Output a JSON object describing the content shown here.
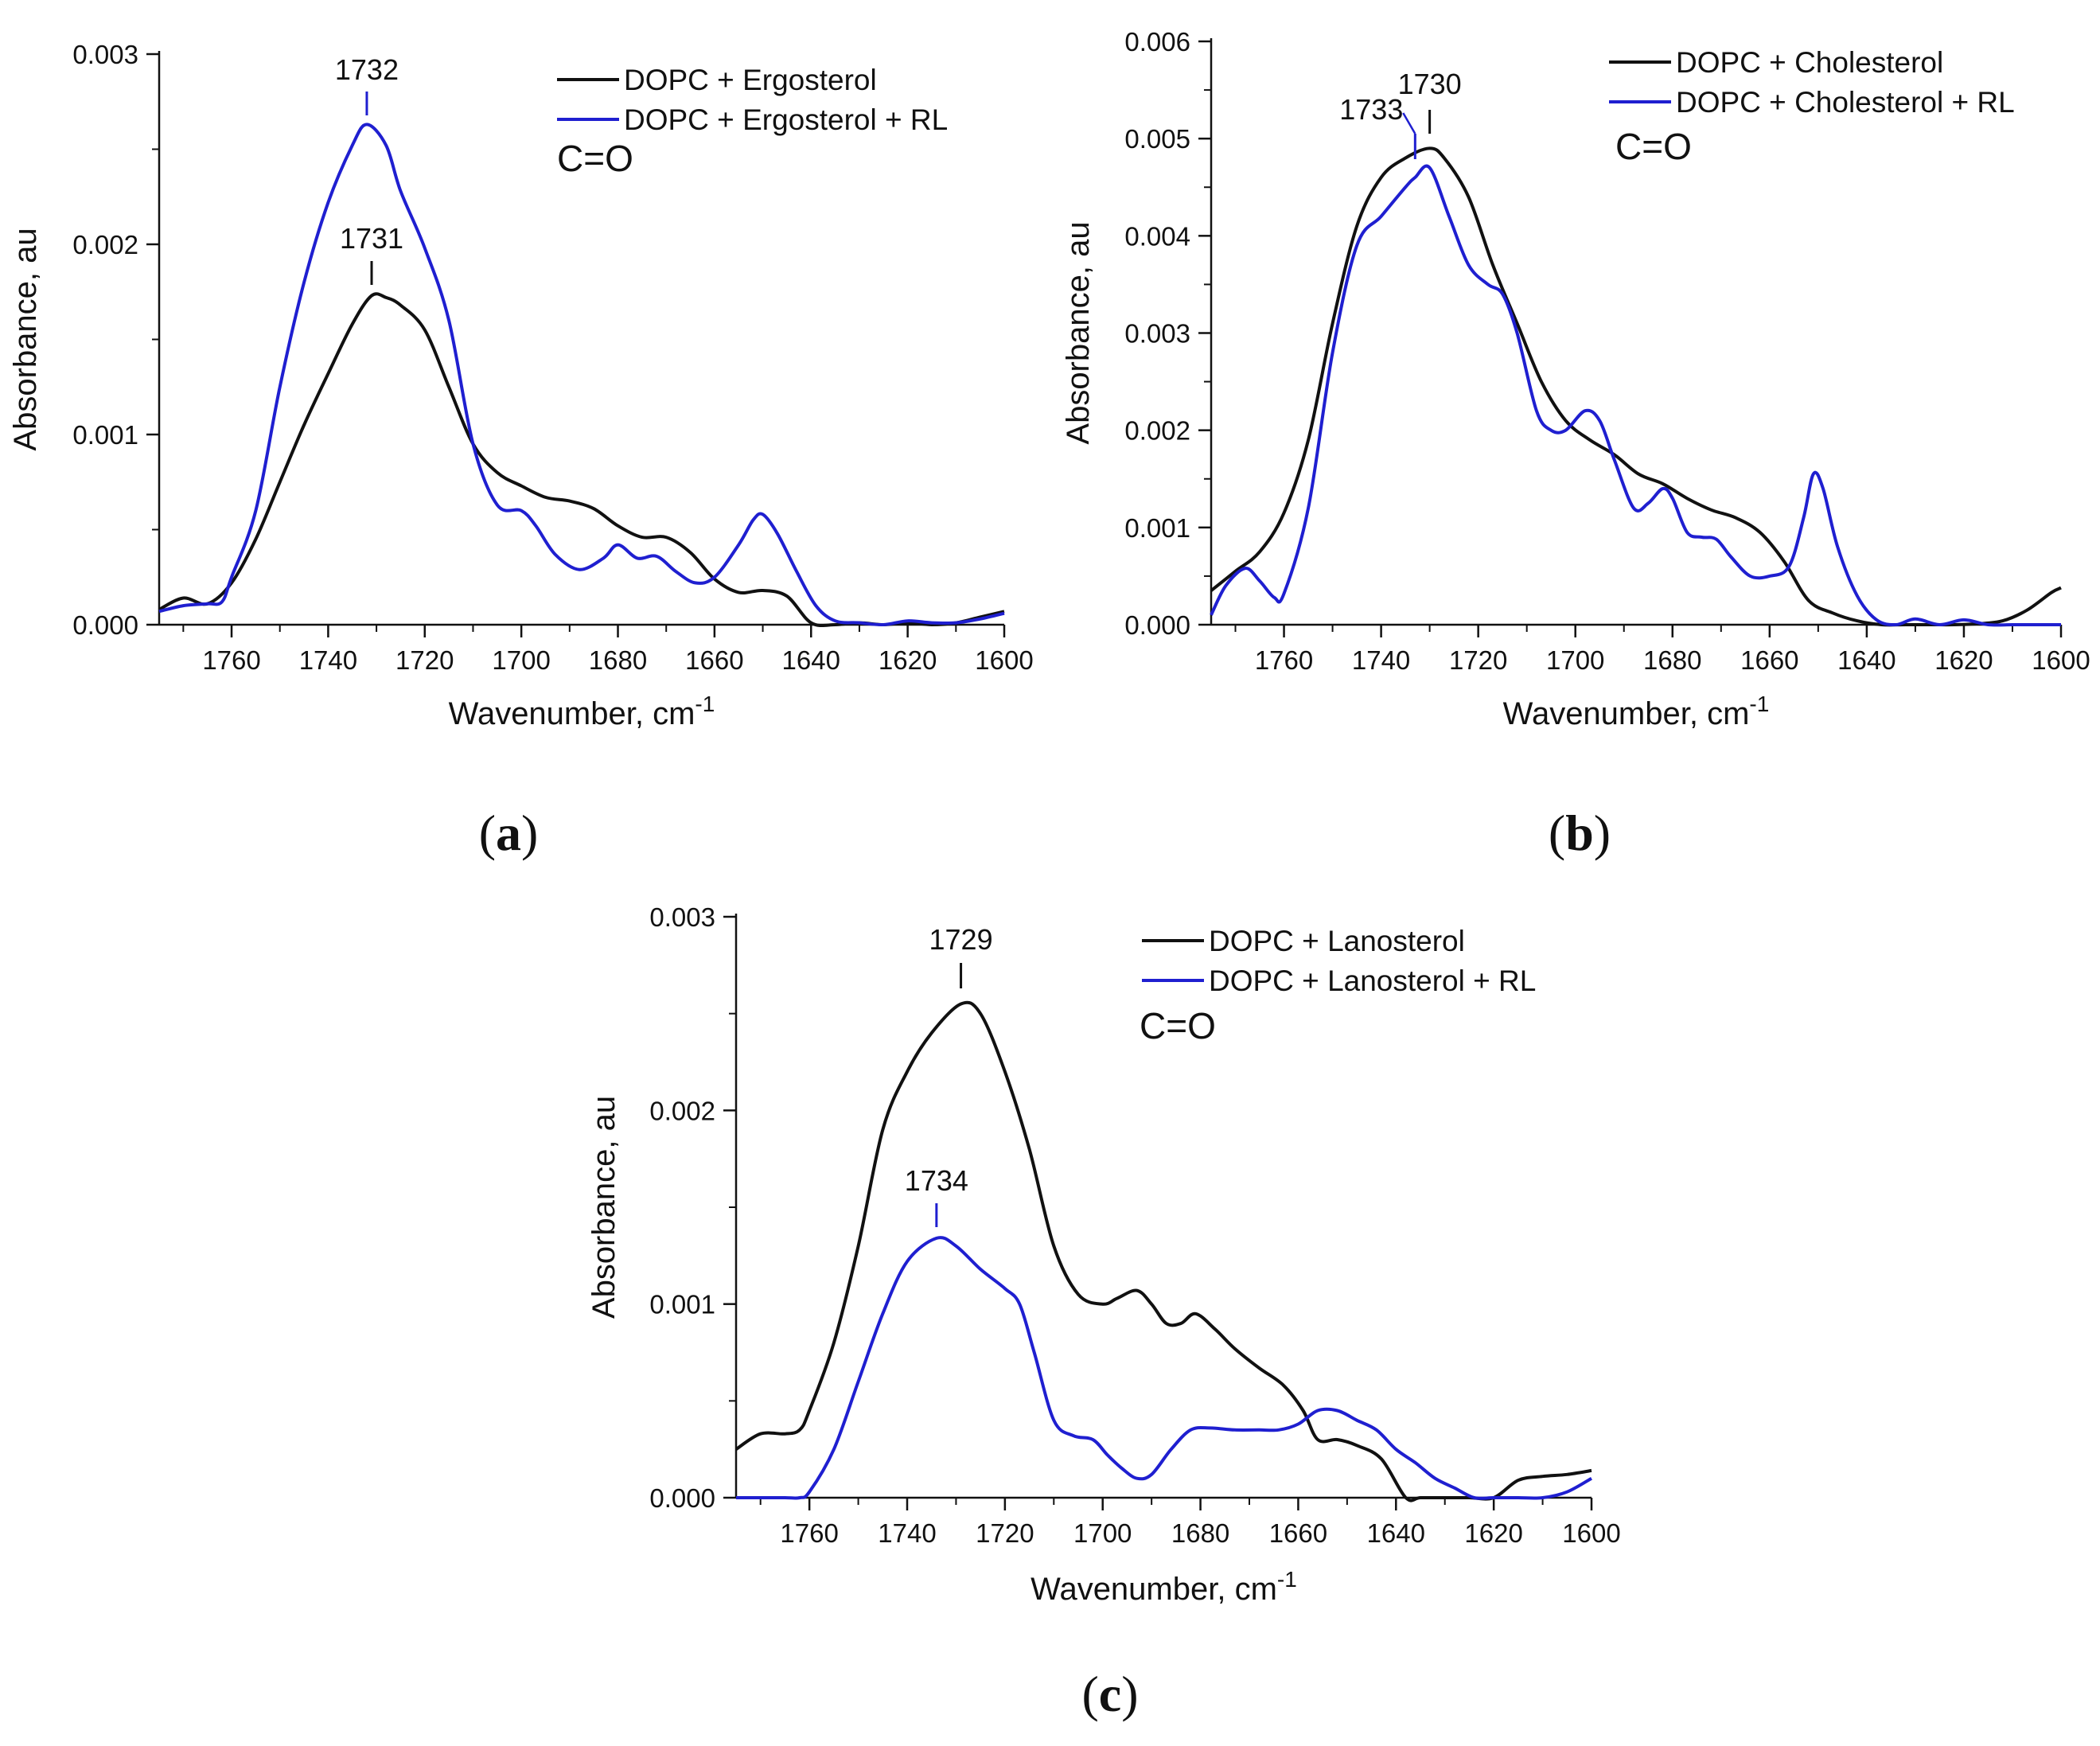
{
  "figure": {
    "panels": [
      {
        "caption": {
          "open": "(",
          "letter": "a",
          "close": ")"
        },
        "title": "",
        "xlabel": "Wavenumber, cm",
        "xlabel_sup": "-1",
        "ylabel": "Absorbance, au",
        "box_label": "C=O"
      },
      {
        "caption": {
          "open": "(",
          "letter": "b",
          "close": ")"
        },
        "title": "",
        "xlabel": "Wavenumber, cm",
        "xlabel_sup": "-1",
        "ylabel": "Absorbance, au",
        "box_label": "C=O"
      },
      {
        "caption": {
          "open": "(",
          "letter": "c",
          "close": ")"
        },
        "title": "",
        "xlabel": "Wavenumber, cm",
        "xlabel_sup": "-1",
        "ylabel": "Absorbance, au",
        "box_label": "C=O"
      }
    ]
  },
  "colors": {
    "black_series": "#111111",
    "blue_series": "#1f1fd0",
    "axis": "#111111"
  },
  "chart_data": [
    {
      "type": "line",
      "title": "",
      "xlabel": "Wavenumber, cm-1",
      "ylabel": "Absorbance, au",
      "xlim": [
        1775,
        1600
      ],
      "ylim": [
        0,
        0.003
      ],
      "xticks": [
        1760,
        1740,
        1720,
        1700,
        1680,
        1660,
        1640,
        1620,
        1600
      ],
      "xticklabels": [
        "1760",
        "1740",
        "1720",
        "1700",
        "1680",
        "1660",
        "1640",
        "1620",
        "1600"
      ],
      "yticks": [
        0,
        0.001,
        0.002,
        0.003
      ],
      "yticklabels": [
        "0.000",
        "0.001",
        "0.002",
        "0.003"
      ],
      "legend_position": "top-right",
      "series": [
        {
          "name": "DOPC + Ergosterol",
          "color": "#111111",
          "x": [
            1775,
            1770,
            1765,
            1760,
            1755,
            1750,
            1745,
            1740,
            1735,
            1731,
            1728,
            1725,
            1720,
            1715,
            1710,
            1705,
            1700,
            1695,
            1690,
            1685,
            1680,
            1675,
            1670,
            1665,
            1660,
            1655,
            1650,
            1645,
            1640,
            1635,
            1630,
            1625,
            1620,
            1615,
            1610,
            1605,
            1600
          ],
          "y": [
            8e-05,
            0.00014,
            0.00011,
            0.00022,
            0.00045,
            0.00075,
            0.00105,
            0.00132,
            0.00158,
            0.00173,
            0.00172,
            0.00168,
            0.00155,
            0.00125,
            0.00095,
            0.0008,
            0.00073,
            0.00067,
            0.00065,
            0.00061,
            0.00052,
            0.00046,
            0.00046,
            0.00038,
            0.00024,
            0.00017,
            0.00018,
            0.00015,
            1e-05,
            0.0,
            1e-05,
            0.0,
            1e-05,
            0.0,
            1e-05,
            4e-05,
            7e-05
          ]
        },
        {
          "name": "DOPC + Ergosterol + RL",
          "color": "#1f1fd0",
          "x": [
            1775,
            1770,
            1765,
            1762,
            1760,
            1755,
            1750,
            1745,
            1740,
            1735,
            1732,
            1728,
            1725,
            1720,
            1715,
            1710,
            1705,
            1700,
            1697,
            1693,
            1688,
            1683,
            1680,
            1676,
            1672,
            1668,
            1664,
            1660,
            1655,
            1652,
            1650,
            1647,
            1643,
            1639,
            1635,
            1630,
            1625,
            1620,
            1615,
            1610,
            1605,
            1600
          ],
          "y": [
            7e-05,
            0.0001,
            0.00011,
            0.00012,
            0.00025,
            0.0006,
            0.00125,
            0.0018,
            0.00222,
            0.00252,
            0.00263,
            0.00252,
            0.00228,
            0.00198,
            0.0016,
            0.00095,
            0.00063,
            0.0006,
            0.00052,
            0.00037,
            0.00029,
            0.00035,
            0.00042,
            0.00035,
            0.00036,
            0.00028,
            0.00022,
            0.00025,
            0.00042,
            0.00055,
            0.00058,
            0.00048,
            0.00028,
            0.0001,
            2e-05,
            1e-05,
            0.0,
            2e-05,
            1e-05,
            1e-05,
            3e-05,
            6e-05
          ]
        }
      ],
      "annotations": [
        {
          "text": "1732",
          "x": 1732,
          "color": "#1f1fd0",
          "series": 1
        },
        {
          "text": "1731",
          "x": 1731,
          "color": "#111111",
          "series": 0
        }
      ]
    },
    {
      "type": "line",
      "title": "",
      "xlabel": "Wavenumber, cm-1",
      "ylabel": "Absorbance, au",
      "xlim": [
        1775,
        1600
      ],
      "ylim": [
        0,
        0.006
      ],
      "xticks": [
        1760,
        1740,
        1720,
        1700,
        1680,
        1660,
        1640,
        1620,
        1600
      ],
      "xticklabels": [
        "1760",
        "1740",
        "1720",
        "1700",
        "1680",
        "1660",
        "1640",
        "1620",
        "1600"
      ],
      "yticks": [
        0,
        0.001,
        0.002,
        0.003,
        0.004,
        0.005,
        0.006
      ],
      "yticklabels": [
        "0.000",
        "0.001",
        "0.002",
        "0.003",
        "0.004",
        "0.005",
        "0.006"
      ],
      "legend_position": "top-right",
      "series": [
        {
          "name": "DOPC + Cholesterol",
          "color": "#111111",
          "x": [
            1775,
            1770,
            1765,
            1760,
            1755,
            1750,
            1745,
            1740,
            1735,
            1730,
            1727,
            1722,
            1717,
            1712,
            1707,
            1702,
            1697,
            1692,
            1687,
            1682,
            1677,
            1672,
            1667,
            1662,
            1657,
            1652,
            1647,
            1642,
            1637,
            1632,
            1627,
            1622,
            1617,
            1612,
            1607,
            1602,
            1600
          ],
          "y": [
            0.00035,
            0.00055,
            0.00075,
            0.00115,
            0.0019,
            0.0031,
            0.0041,
            0.0046,
            0.0048,
            0.0049,
            0.0048,
            0.0044,
            0.0037,
            0.0031,
            0.0025,
            0.0021,
            0.0019,
            0.00175,
            0.00155,
            0.00145,
            0.0013,
            0.00118,
            0.0011,
            0.00095,
            0.00065,
            0.00025,
            0.00012,
            4e-05,
            0.0,
            0.0,
            0.0,
            0.0,
            1e-05,
            4e-05,
            0.00015,
            0.00033,
            0.00038
          ]
        },
        {
          "name": "DOPC + Cholesterol + RL",
          "color": "#1f1fd0",
          "x": [
            1775,
            1772,
            1768,
            1765,
            1762,
            1760,
            1755,
            1750,
            1745,
            1740,
            1735,
            1733,
            1730,
            1726,
            1722,
            1718,
            1715,
            1712,
            1708,
            1705,
            1702,
            1698,
            1695,
            1692,
            1688,
            1685,
            1682,
            1680,
            1677,
            1674,
            1671,
            1668,
            1664,
            1660,
            1656,
            1653,
            1651,
            1649,
            1646,
            1642,
            1638,
            1634,
            1630,
            1625,
            1620,
            1615,
            1610,
            1605,
            1600
          ],
          "y": [
            0.0001,
            0.0004,
            0.00058,
            0.00045,
            0.00028,
            0.00032,
            0.0012,
            0.0028,
            0.0039,
            0.0042,
            0.0045,
            0.0046,
            0.0047,
            0.0042,
            0.0037,
            0.0035,
            0.0034,
            0.003,
            0.0022,
            0.002,
            0.002,
            0.0022,
            0.0021,
            0.0017,
            0.0012,
            0.00125,
            0.0014,
            0.0013,
            0.00095,
            0.0009,
            0.00088,
            0.0007,
            0.0005,
            0.0005,
            0.0006,
            0.0011,
            0.00155,
            0.0014,
            0.0008,
            0.0003,
            5e-05,
            0.0,
            6e-05,
            0.0,
            5e-05,
            0.0,
            0.0,
            0.0,
            0.0
          ]
        }
      ],
      "annotations": [
        {
          "text": "1733",
          "x": 1733,
          "color": "#1f1fd0",
          "series": 1
        },
        {
          "text": "1730",
          "x": 1730,
          "color": "#111111",
          "series": 0
        }
      ]
    },
    {
      "type": "line",
      "title": "",
      "xlabel": "Wavenumber, cm-1",
      "ylabel": "Absorbance, au",
      "xlim": [
        1775,
        1600
      ],
      "ylim": [
        0,
        0.003
      ],
      "xticks": [
        1760,
        1740,
        1720,
        1700,
        1680,
        1660,
        1640,
        1620,
        1600
      ],
      "xticklabels": [
        "1760",
        "1740",
        "1720",
        "1700",
        "1680",
        "1660",
        "1640",
        "1620",
        "1600"
      ],
      "yticks": [
        0,
        0.001,
        0.002,
        0.003
      ],
      "yticklabels": [
        "0.000",
        "0.001",
        "0.002",
        "0.003"
      ],
      "legend_position": "top-right",
      "series": [
        {
          "name": "DOPC + Lanosterol",
          "color": "#111111",
          "x": [
            1775,
            1770,
            1765,
            1762,
            1760,
            1755,
            1750,
            1745,
            1740,
            1735,
            1729,
            1725,
            1720,
            1715,
            1710,
            1705,
            1700,
            1697,
            1693,
            1690,
            1687,
            1684,
            1681,
            1677,
            1673,
            1668,
            1663,
            1659,
            1656,
            1652,
            1648,
            1643,
            1638,
            1635,
            1630,
            1625,
            1620,
            1615,
            1610,
            1605,
            1600
          ],
          "y": [
            0.00025,
            0.00033,
            0.00033,
            0.00035,
            0.00045,
            0.0008,
            0.0013,
            0.0019,
            0.0022,
            0.0024,
            0.00255,
            0.0025,
            0.0022,
            0.0018,
            0.0013,
            0.00105,
            0.001,
            0.00103,
            0.00107,
            0.001,
            0.0009,
            0.0009,
            0.00095,
            0.00087,
            0.00077,
            0.00067,
            0.00058,
            0.00045,
            0.0003,
            0.0003,
            0.00027,
            0.0002,
            0.0,
            0.0,
            0.0,
            0.0,
            0.0,
            9e-05,
            0.00011,
            0.00012,
            0.00014
          ]
        },
        {
          "name": "DOPC + Lanosterol + RL",
          "color": "#1f1fd0",
          "x": [
            1775,
            1770,
            1765,
            1762,
            1760,
            1755,
            1750,
            1745,
            1740,
            1734,
            1730,
            1725,
            1720,
            1717,
            1714,
            1710,
            1706,
            1702,
            1699,
            1696,
            1693,
            1690,
            1686,
            1682,
            1678,
            1673,
            1668,
            1664,
            1660,
            1656,
            1652,
            1648,
            1644,
            1640,
            1636,
            1632,
            1628,
            1624,
            1620,
            1615,
            1610,
            1605,
            1600
          ],
          "y": [
            0.0,
            0.0,
            0.0,
            0.0,
            3e-05,
            0.00025,
            0.0006,
            0.00095,
            0.00122,
            0.00134,
            0.0013,
            0.00118,
            0.00108,
            0.001,
            0.00075,
            0.0004,
            0.00032,
            0.0003,
            0.00022,
            0.00015,
            0.0001,
            0.00012,
            0.00025,
            0.00035,
            0.00036,
            0.00035,
            0.00035,
            0.00035,
            0.00038,
            0.00045,
            0.00045,
            0.0004,
            0.00035,
            0.00025,
            0.00018,
            0.0001,
            5e-05,
            0.0,
            0.0,
            0.0,
            0.0,
            3e-05,
            0.0001
          ]
        }
      ],
      "annotations": [
        {
          "text": "1729",
          "x": 1729,
          "color": "#111111",
          "series": 0
        },
        {
          "text": "1734",
          "x": 1734,
          "color": "#1f1fd0",
          "series": 1
        }
      ]
    }
  ]
}
